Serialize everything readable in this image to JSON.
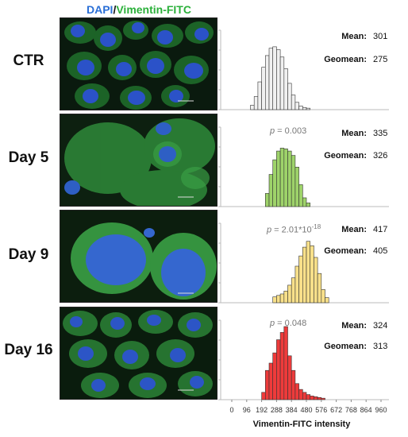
{
  "header": {
    "dapi": "DAPI",
    "slash": "/",
    "vimentin": "Vimentin-FITC"
  },
  "colors": {
    "dapi": "#2a6fd6",
    "vimentin": "#2bb03a"
  },
  "stat_labels": {
    "mean": "Mean:",
    "geomean": "Geomean:"
  },
  "panels": [
    {
      "label": "CTR",
      "p_prefix": "",
      "p_value": "",
      "p_exp": "",
      "mean": "301",
      "geomean": "275",
      "color": "#f0f0f0"
    },
    {
      "label": "Day 5",
      "p_prefix": "p",
      "p_value": " = 0.003",
      "p_exp": "",
      "mean": "335",
      "geomean": "326",
      "color": "#9ed36a"
    },
    {
      "label": "Day 9",
      "p_prefix": "p",
      "p_value": " = 2.01*10",
      "p_exp": "-18",
      "mean": "417",
      "geomean": "405",
      "color": "#f8e08a"
    },
    {
      "label": "Day 16",
      "p_prefix": "p",
      "p_value": " = 0.048",
      "p_exp": "",
      "mean": "324",
      "geomean": "313",
      "color": "#ee3b3b"
    }
  ],
  "chart_data": {
    "type": "bar",
    "xlabel": "Vimentin-FITC intensity",
    "xticks": [
      "0",
      "96",
      "192",
      "288",
      "384",
      "480",
      "576",
      "672",
      "768",
      "864",
      "960"
    ],
    "xlim": [
      0,
      960
    ],
    "bin_width": 24,
    "series": [
      {
        "name": "CTR",
        "bin_start": 120,
        "values": [
          0.06,
          0.18,
          0.38,
          0.58,
          0.74,
          0.84,
          0.86,
          0.82,
          0.72,
          0.56,
          0.36,
          0.2,
          0.1,
          0.05,
          0.03,
          0.02
        ]
      },
      {
        "name": "Day 5",
        "bin_start": 216,
        "values": [
          0.18,
          0.44,
          0.64,
          0.76,
          0.8,
          0.79,
          0.76,
          0.7,
          0.54,
          0.3,
          0.12,
          0.05
        ]
      },
      {
        "name": "Day 9",
        "bin_start": 264,
        "values": [
          0.08,
          0.1,
          0.12,
          0.16,
          0.24,
          0.34,
          0.5,
          0.64,
          0.76,
          0.84,
          0.78,
          0.62,
          0.4,
          0.18,
          0.07
        ]
      },
      {
        "name": "Day 16",
        "bin_start": 192,
        "values": [
          0.1,
          0.4,
          0.5,
          0.64,
          0.82,
          0.92,
          1.0,
          0.6,
          0.4,
          0.22,
          0.14,
          0.1,
          0.07,
          0.05,
          0.04,
          0.03,
          0.02
        ]
      }
    ]
  }
}
